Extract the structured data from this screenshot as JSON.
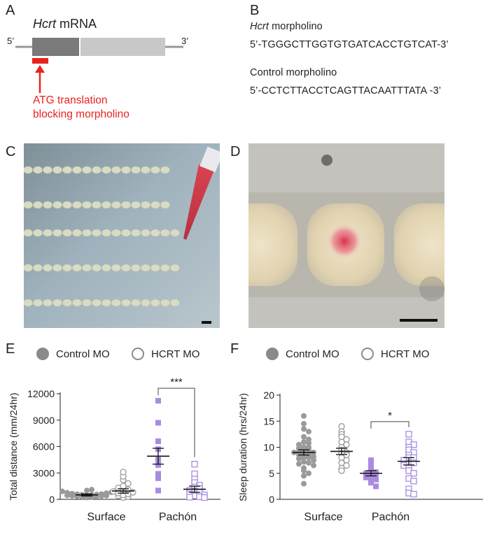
{
  "panel_letters": {
    "a": "A",
    "b": "B",
    "c": "C",
    "d": "D",
    "e": "E",
    "f": "F"
  },
  "panel_a": {
    "gene_italic": "Hcrt",
    "gene_rest": " mRNA",
    "five_prime": "5’",
    "three_prime": "3’",
    "arrow_label_line1": "ATG translation",
    "arrow_label_line2": "blocking morpholino",
    "colors": {
      "exon_dark": "#7a7a7a",
      "exon_light": "#c8c8c8",
      "morpholino": "#e8231f"
    }
  },
  "panel_b": {
    "hcrt_title_italic": "Hcrt",
    "hcrt_title_rest": " morpholino",
    "hcrt_seq": "5’-TGGGCTTGGTGTGATCACCTGTCAT-3’",
    "control_title": "Control morpholino",
    "control_seq": "5’-CCTCTTACCTCAGTTACAATTTATA -3’"
  },
  "legend": {
    "control": "Control MO",
    "hcrt": "HCRT MO"
  },
  "chart_data": [
    {
      "type": "scatter",
      "panel": "E",
      "ylabel": "Total distance (mm/24hr)",
      "ylim": [
        0,
        12000
      ],
      "yticks": [
        0,
        3000,
        6000,
        9000,
        12000
      ],
      "groups": [
        "Surface",
        "Pachón"
      ],
      "significance": "***",
      "series": [
        {
          "name": "Control MO",
          "group": "Surface",
          "color": "#9a9a9a",
          "marker": "filled-circle",
          "mean": 500,
          "sem": 120,
          "values": [
            200,
            250,
            300,
            320,
            350,
            380,
            400,
            420,
            450,
            480,
            500,
            520,
            550,
            580,
            600,
            650,
            700,
            750,
            800,
            900,
            1000,
            1100
          ]
        },
        {
          "name": "HCRT MO",
          "group": "Surface",
          "color": "#9a9a9a",
          "marker": "open-circle",
          "mean": 950,
          "sem": 250,
          "values": [
            200,
            300,
            400,
            500,
            600,
            700,
            800,
            900,
            1000,
            1100,
            1300,
            1500,
            1800,
            2200,
            2600,
            3100
          ]
        },
        {
          "name": "Control MO",
          "group": "Pachón",
          "color": "#a98be0",
          "marker": "filled-square",
          "mean": 4900,
          "sem": 900,
          "values": [
            11200,
            8700,
            6600,
            5700,
            4500,
            3900,
            2900,
            2400,
            1000
          ]
        },
        {
          "name": "HCRT MO",
          "group": "Pachón",
          "color": "#a98be0",
          "marker": "open-square",
          "mean": 1150,
          "sem": 350,
          "values": [
            4000,
            2900,
            2300,
            1900,
            1600,
            1400,
            1200,
            1000,
            900,
            800,
            600,
            500,
            400,
            300,
            250,
            200
          ]
        }
      ]
    },
    {
      "type": "scatter",
      "panel": "F",
      "ylabel": "Sleep duration (hrs/24hr)",
      "ylim": [
        0,
        20
      ],
      "yticks": [
        0,
        5,
        10,
        15,
        20
      ],
      "groups": [
        "Surface",
        "Pachón"
      ],
      "significance": "*",
      "series": [
        {
          "name": "Control MO",
          "group": "Surface",
          "color": "#9a9a9a",
          "marker": "filled-circle",
          "mean": 9.0,
          "sem": 0.5,
          "values": [
            16,
            14.5,
            13.5,
            13,
            12,
            11.5,
            11,
            10.8,
            10.5,
            10,
            10,
            9.8,
            9.5,
            9.5,
            9.2,
            9,
            9,
            8.8,
            8.5,
            8.5,
            8.2,
            8,
            8,
            7.8,
            7.5,
            7.2,
            7,
            6.8,
            6.5,
            6,
            5.5,
            5,
            4.5,
            3
          ]
        },
        {
          "name": "HCRT MO",
          "group": "Surface",
          "color": "#9a9a9a",
          "marker": "open-circle",
          "mean": 9.2,
          "sem": 0.6,
          "values": [
            14,
            13,
            12.5,
            12,
            11.5,
            11,
            10.5,
            10,
            9.5,
            9,
            8.8,
            8.5,
            8,
            7.5,
            7,
            6.5,
            6,
            5.5
          ]
        },
        {
          "name": "Control MO",
          "group": "Pachón",
          "color": "#a98be0",
          "marker": "filled-square",
          "mean": 5.0,
          "sem": 0.5,
          "values": [
            7.5,
            6.5,
            6,
            5.5,
            5.2,
            5,
            4.8,
            4.5,
            4.2,
            4,
            3.8,
            3.2,
            2.5
          ]
        },
        {
          "name": "HCRT MO",
          "group": "Pachón",
          "color": "#a98be0",
          "marker": "open-square",
          "mean": 7.3,
          "sem": 0.7,
          "values": [
            12.5,
            11,
            10.5,
            10,
            9.5,
            9,
            8.5,
            8,
            8,
            7.5,
            7,
            7,
            6.5,
            6,
            5.5,
            5,
            4,
            3.5,
            2,
            1.2,
            1
          ]
        }
      ]
    }
  ]
}
